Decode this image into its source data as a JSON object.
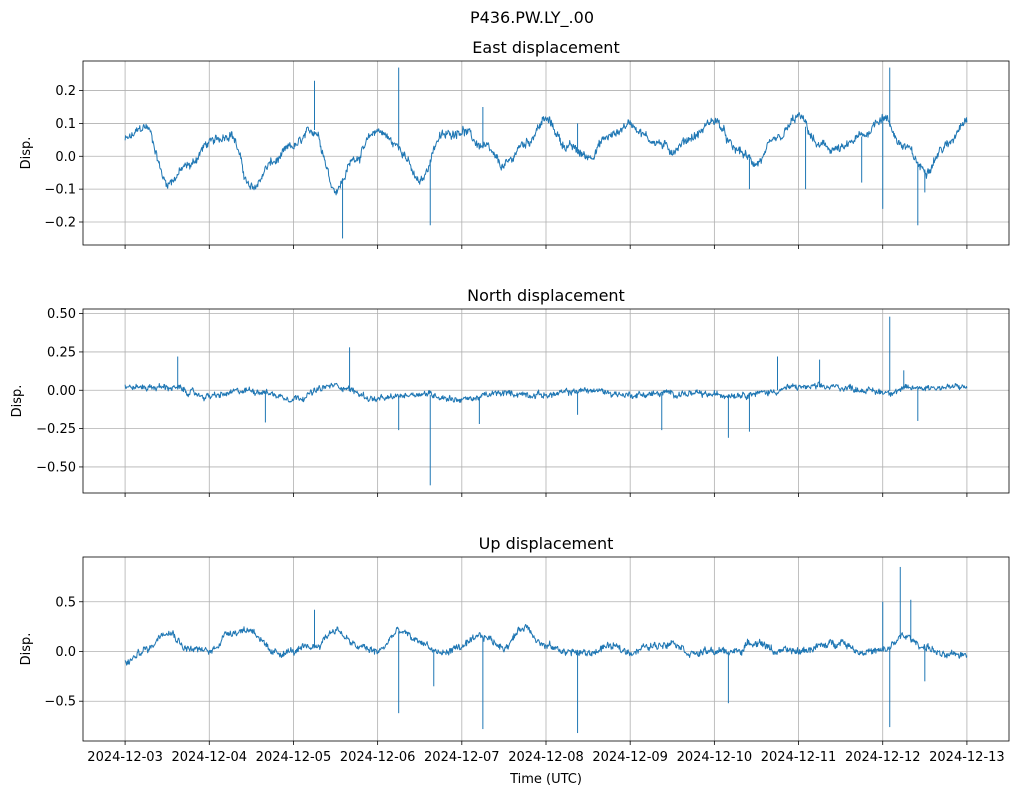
{
  "figure": {
    "suptitle": "P436.PW.LY_.00",
    "xlabel": "Time (UTC)",
    "line_color": "#1f77b4"
  },
  "chart_data": [
    {
      "type": "line",
      "title": "East displacement",
      "ylabel": "Disp.",
      "x_ticks": [
        "2024-12-03",
        "2024-12-04",
        "2024-12-05",
        "2024-12-06",
        "2024-12-07",
        "2024-12-08",
        "2024-12-09",
        "2024-12-10",
        "2024-12-11",
        "2024-12-12",
        "2024-12-13"
      ],
      "y_ticks": [
        -0.2,
        -0.1,
        0.0,
        0.1,
        0.2
      ],
      "y_tick_labels": [
        "−0.2",
        "−0.1",
        "0.0",
        "0.1",
        "0.2"
      ],
      "xlim": [
        "2024-12-02T12:00",
        "2024-12-13T12:00"
      ],
      "ylim": [
        -0.27,
        0.29
      ],
      "grid": true,
      "noise": 0.015,
      "series": [
        {
          "x": [
            "2024-12-03T00:00",
            "2024-12-03T06:00",
            "2024-12-03T12:00",
            "2024-12-03T18:00",
            "2024-12-04T00:00",
            "2024-12-04T06:00",
            "2024-12-04T12:00",
            "2024-12-04T18:00",
            "2024-12-05T00:00",
            "2024-12-05T06:00",
            "2024-12-05T12:00",
            "2024-12-05T18:00",
            "2024-12-06T00:00",
            "2024-12-06T06:00",
            "2024-12-06T12:00",
            "2024-12-06T18:00",
            "2024-12-07T00:00",
            "2024-12-07T06:00",
            "2024-12-07T12:00",
            "2024-12-07T18:00",
            "2024-12-08T00:00",
            "2024-12-08T06:00",
            "2024-12-08T12:00",
            "2024-12-08T18:00",
            "2024-12-09T00:00",
            "2024-12-09T06:00",
            "2024-12-09T12:00",
            "2024-12-09T18:00",
            "2024-12-10T00:00",
            "2024-12-10T06:00",
            "2024-12-10T12:00",
            "2024-12-10T18:00",
            "2024-12-11T00:00",
            "2024-12-11T06:00",
            "2024-12-11T12:00",
            "2024-12-11T18:00",
            "2024-12-12T00:00",
            "2024-12-12T06:00",
            "2024-12-12T12:00",
            "2024-12-12T18:00",
            "2024-12-13T00:00"
          ],
          "y": [
            0.05,
            0.09,
            -0.08,
            -0.03,
            0.04,
            0.07,
            -0.1,
            -0.02,
            0.03,
            0.08,
            -0.1,
            0.0,
            0.08,
            0.03,
            -0.08,
            0.06,
            0.08,
            0.03,
            -0.03,
            0.04,
            0.11,
            0.03,
            0.0,
            0.06,
            0.1,
            0.05,
            0.02,
            0.06,
            0.11,
            0.02,
            -0.02,
            0.05,
            0.12,
            0.03,
            0.02,
            0.06,
            0.12,
            0.03,
            -0.04,
            0.03,
            0.12
          ],
          "spikes": [
            {
              "x": "2024-12-04T15:00",
              "y": -0.07
            },
            {
              "x": "2024-12-05T06:00",
              "y": 0.23
            },
            {
              "x": "2024-12-05T14:00",
              "y": -0.25
            },
            {
              "x": "2024-12-06T06:00",
              "y": 0.27
            },
            {
              "x": "2024-12-06T15:00",
              "y": -0.21
            },
            {
              "x": "2024-12-07T06:00",
              "y": 0.15
            },
            {
              "x": "2024-12-08T09:00",
              "y": 0.1
            },
            {
              "x": "2024-12-10T10:00",
              "y": -0.1
            },
            {
              "x": "2024-12-11T02:00",
              "y": -0.1
            },
            {
              "x": "2024-12-11T18:00",
              "y": -0.08
            },
            {
              "x": "2024-12-12T00:00",
              "y": -0.16
            },
            {
              "x": "2024-12-12T02:00",
              "y": 0.27
            },
            {
              "x": "2024-12-12T10:00",
              "y": -0.21
            },
            {
              "x": "2024-12-12T12:00",
              "y": -0.11
            }
          ]
        }
      ]
    },
    {
      "type": "line",
      "title": "North displacement",
      "ylabel": "Disp.",
      "x_ticks": [
        "2024-12-03",
        "2024-12-04",
        "2024-12-05",
        "2024-12-06",
        "2024-12-07",
        "2024-12-08",
        "2024-12-09",
        "2024-12-10",
        "2024-12-11",
        "2024-12-12",
        "2024-12-13"
      ],
      "y_ticks": [
        -0.5,
        -0.25,
        0.0,
        0.25,
        0.5
      ],
      "y_tick_labels": [
        "−0.50",
        "−0.25",
        "0.00",
        "0.25",
        "0.50"
      ],
      "xlim": [
        "2024-12-02T12:00",
        "2024-12-13T12:00"
      ],
      "ylim": [
        -0.67,
        0.53
      ],
      "grid": true,
      "noise": 0.022,
      "series": [
        {
          "x": [
            "2024-12-03T00:00",
            "2024-12-03T12:00",
            "2024-12-04T00:00",
            "2024-12-04T12:00",
            "2024-12-05T00:00",
            "2024-12-05T12:00",
            "2024-12-06T00:00",
            "2024-12-06T12:00",
            "2024-12-07T00:00",
            "2024-12-07T12:00",
            "2024-12-08T00:00",
            "2024-12-08T12:00",
            "2024-12-09T00:00",
            "2024-12-09T12:00",
            "2024-12-10T00:00",
            "2024-12-10T12:00",
            "2024-12-11T00:00",
            "2024-12-11T12:00",
            "2024-12-12T00:00",
            "2024-12-12T12:00",
            "2024-12-13T00:00"
          ],
          "y": [
            0.02,
            0.02,
            -0.04,
            0.0,
            -0.05,
            0.03,
            -0.06,
            -0.02,
            -0.06,
            -0.02,
            -0.03,
            0.0,
            -0.03,
            -0.02,
            -0.03,
            -0.02,
            0.02,
            0.02,
            -0.01,
            0.02,
            0.02
          ],
          "spikes": [
            {
              "x": "2024-12-03T15:00",
              "y": 0.22
            },
            {
              "x": "2024-12-04T16:00",
              "y": -0.21
            },
            {
              "x": "2024-12-05T16:00",
              "y": 0.28
            },
            {
              "x": "2024-12-06T06:00",
              "y": -0.26
            },
            {
              "x": "2024-12-06T15:00",
              "y": -0.62
            },
            {
              "x": "2024-12-07T05:00",
              "y": -0.22
            },
            {
              "x": "2024-12-08T09:00",
              "y": -0.16
            },
            {
              "x": "2024-12-09T09:00",
              "y": -0.26
            },
            {
              "x": "2024-12-10T04:00",
              "y": -0.31
            },
            {
              "x": "2024-12-10T10:00",
              "y": -0.27
            },
            {
              "x": "2024-12-10T18:00",
              "y": 0.22
            },
            {
              "x": "2024-12-11T06:00",
              "y": 0.2
            },
            {
              "x": "2024-12-12T02:00",
              "y": 0.48
            },
            {
              "x": "2024-12-12T06:00",
              "y": 0.13
            },
            {
              "x": "2024-12-12T10:00",
              "y": -0.2
            }
          ]
        }
      ]
    },
    {
      "type": "line",
      "title": "Up displacement",
      "ylabel": "Disp.",
      "x_ticks": [
        "2024-12-03",
        "2024-12-04",
        "2024-12-05",
        "2024-12-06",
        "2024-12-07",
        "2024-12-08",
        "2024-12-09",
        "2024-12-10",
        "2024-12-11",
        "2024-12-12",
        "2024-12-13"
      ],
      "x_tick_labels": [
        "2024-12-03",
        "2024-12-04",
        "2024-12-05",
        "2024-12-06",
        "2024-12-07",
        "2024-12-08",
        "2024-12-09",
        "2024-12-10",
        "2024-12-11",
        "2024-12-12",
        "2024-12-13"
      ],
      "y_ticks": [
        -0.5,
        0.0,
        0.5
      ],
      "y_tick_labels": [
        "−0.5",
        "0.0",
        "0.5"
      ],
      "xlim": [
        "2024-12-02T12:00",
        "2024-12-13T12:00"
      ],
      "ylim": [
        -0.9,
        0.95
      ],
      "grid": true,
      "noise": 0.04,
      "series": [
        {
          "x": [
            "2024-12-03T00:00",
            "2024-12-03T06:00",
            "2024-12-03T12:00",
            "2024-12-03T18:00",
            "2024-12-04T00:00",
            "2024-12-04T06:00",
            "2024-12-04T12:00",
            "2024-12-04T18:00",
            "2024-12-05T00:00",
            "2024-12-05T06:00",
            "2024-12-05T12:00",
            "2024-12-05T18:00",
            "2024-12-06T00:00",
            "2024-12-06T06:00",
            "2024-12-06T12:00",
            "2024-12-06T18:00",
            "2024-12-07T00:00",
            "2024-12-07T06:00",
            "2024-12-07T12:00",
            "2024-12-07T18:00",
            "2024-12-08T00:00",
            "2024-12-08T06:00",
            "2024-12-08T12:00",
            "2024-12-08T18:00",
            "2024-12-09T00:00",
            "2024-12-09T06:00",
            "2024-12-09T12:00",
            "2024-12-09T18:00",
            "2024-12-10T00:00",
            "2024-12-10T06:00",
            "2024-12-10T12:00",
            "2024-12-10T18:00",
            "2024-12-11T00:00",
            "2024-12-11T06:00",
            "2024-12-11T12:00",
            "2024-12-11T18:00",
            "2024-12-12T00:00",
            "2024-12-12T06:00",
            "2024-12-12T12:00",
            "2024-12-12T18:00",
            "2024-12-13T00:00"
          ],
          "y": [
            -0.12,
            0.02,
            0.22,
            0.03,
            0.0,
            0.2,
            0.22,
            -0.02,
            0.0,
            0.05,
            0.22,
            0.05,
            0.0,
            0.2,
            0.1,
            -0.02,
            0.05,
            0.15,
            0.05,
            0.25,
            0.05,
            0.0,
            -0.02,
            0.05,
            0.0,
            0.05,
            0.1,
            -0.02,
            0.0,
            0.0,
            0.1,
            0.0,
            0.0,
            0.05,
            0.1,
            0.0,
            0.0,
            0.15,
            0.05,
            -0.05,
            -0.02
          ],
          "spikes": [
            {
              "x": "2024-12-05T06:00",
              "y": 0.42
            },
            {
              "x": "2024-12-06T06:00",
              "y": -0.62
            },
            {
              "x": "2024-12-06T16:00",
              "y": -0.35
            },
            {
              "x": "2024-12-07T06:00",
              "y": -0.78
            },
            {
              "x": "2024-12-08T09:00",
              "y": -0.82
            },
            {
              "x": "2024-12-10T04:00",
              "y": -0.52
            },
            {
              "x": "2024-12-12T00:00",
              "y": 0.5
            },
            {
              "x": "2024-12-12T02:00",
              "y": -0.76
            },
            {
              "x": "2024-12-12T05:00",
              "y": 0.85
            },
            {
              "x": "2024-12-12T08:00",
              "y": 0.52
            },
            {
              "x": "2024-12-12T12:00",
              "y": -0.3
            }
          ]
        }
      ]
    }
  ]
}
